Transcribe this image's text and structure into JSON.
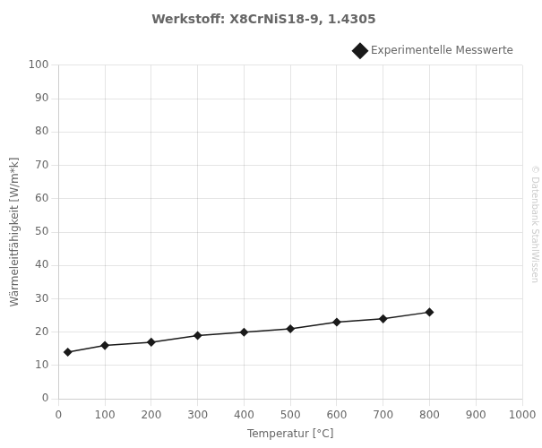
{
  "chart_data": {
    "type": "line",
    "title": "Werkstoff: X8CrNiS18-9, 1.4305",
    "xlabel": "Temperatur [°C]",
    "ylabel": "Wärmeleitfähigkeit [W/m*k]",
    "annotations": [
      {
        "text": "© Datenbank StahlWissen",
        "color": "#cccccc"
      }
    ],
    "x": [
      20,
      100,
      200,
      300,
      400,
      500,
      600,
      700,
      800
    ],
    "series": [
      {
        "name": "Experimentelle Messwerte",
        "color": "#1a1a1a",
        "marker": "diamond",
        "values": [
          14,
          16,
          17,
          19,
          20,
          21,
          23,
          24,
          26
        ]
      }
    ],
    "xlim": [
      0,
      1000
    ],
    "ylim": [
      0,
      100
    ],
    "xticks": [
      0,
      100,
      200,
      300,
      400,
      500,
      600,
      700,
      800,
      900,
      1000
    ],
    "yticks": [
      0,
      10,
      20,
      30,
      40,
      50,
      60,
      70,
      80,
      90,
      100
    ],
    "grid": true,
    "legend": "upper right"
  }
}
